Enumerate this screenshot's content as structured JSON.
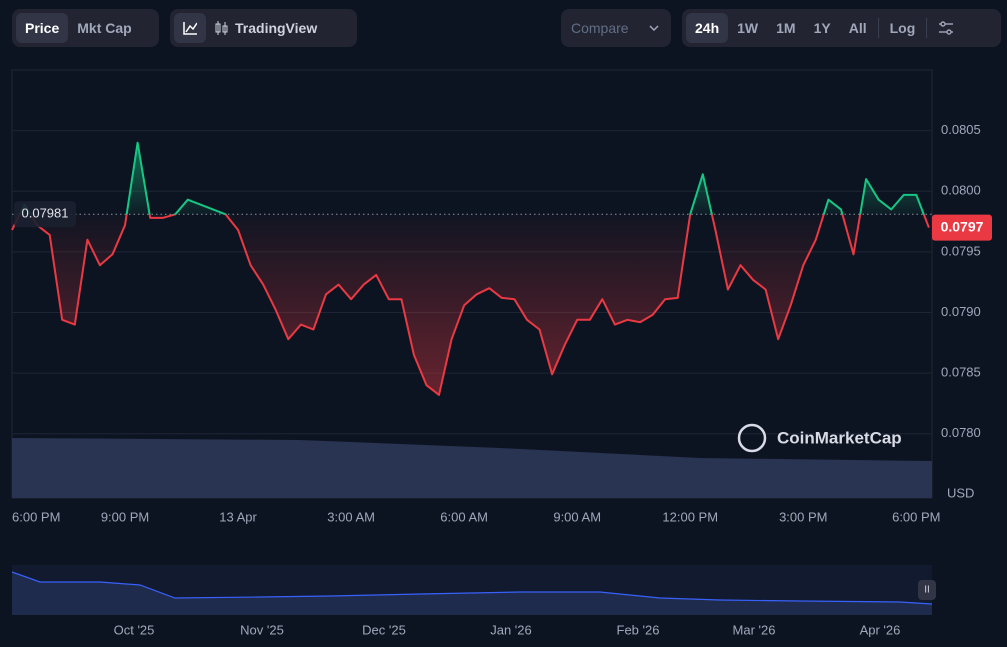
{
  "toolbar": {
    "view_tabs": [
      "Price",
      "Mkt Cap"
    ],
    "tradingview": "TradingView",
    "compare": "Compare",
    "ranges": [
      "24h",
      "1W",
      "1M",
      "1Y",
      "All"
    ],
    "log": "Log"
  },
  "chart_data": {
    "type": "line",
    "categories": [
      "6:00 PM",
      null,
      null,
      null,
      null,
      null,
      null,
      null,
      null,
      "9:00 PM",
      null,
      null,
      null,
      null,
      null,
      null,
      null,
      null,
      "13 Apr",
      null,
      null,
      null,
      null,
      null,
      null,
      null,
      null,
      "3:00 AM",
      null,
      null,
      null,
      null,
      null,
      null,
      null,
      null,
      "6:00 AM",
      null,
      null,
      null,
      null,
      null,
      null,
      null,
      null,
      "9:00 AM",
      null,
      null,
      null,
      null,
      null,
      null,
      null,
      null,
      "12:00 PM",
      null,
      null,
      null,
      null,
      null,
      null,
      null,
      null,
      "3:00 PM",
      null,
      null,
      null,
      null,
      null,
      null,
      null,
      null,
      "6:00 PM",
      null
    ],
    "values": [
      0.07968,
      0.07989,
      0.07972,
      0.07964,
      0.07894,
      0.0789,
      0.0796,
      0.07939,
      0.07948,
      0.07972,
      0.0804,
      0.07978,
      0.07978,
      0.07981,
      0.07993,
      0.07989,
      0.07985,
      0.07981,
      0.07968,
      0.07939,
      0.07923,
      0.07902,
      0.07878,
      0.0789,
      0.07886,
      0.07915,
      0.07923,
      0.07911,
      0.07923,
      0.07931,
      0.07911,
      0.07911,
      0.07865,
      0.0784,
      0.07832,
      0.07878,
      0.07906,
      0.07915,
      0.0792,
      0.07912,
      0.07911,
      0.07894,
      0.07886,
      0.07849,
      0.07873,
      0.07894,
      0.07894,
      0.07911,
      0.0789,
      0.07894,
      0.07892,
      0.07898,
      0.07911,
      0.07912,
      0.07981,
      0.08014,
      0.07968,
      0.07919,
      0.07939,
      0.07927,
      0.07919,
      0.07878,
      0.07906,
      0.07939,
      0.0796,
      0.07993,
      0.07985,
      0.07948,
      0.0801,
      0.07993,
      0.07985,
      0.07997,
      0.07997,
      0.0797
    ],
    "reference": 0.07981,
    "color_up": "#16c784",
    "color_down": "#ea3943",
    "ylim": [
      0.07747,
      0.081
    ],
    "yticks": [
      {
        "value": 0.078,
        "label": "0.0780"
      },
      0.0785,
      {
        "value": 0.079,
        "label": "0.0790"
      },
      0.0795,
      {
        "value": 0.08,
        "label": "0.0800"
      },
      0.0805
    ],
    "grid": true,
    "unit": "USD"
  },
  "watermark": "CoinMarketCap",
  "navigator": {
    "labels": [
      "Oct '25",
      "Nov '25",
      "Dec '25",
      "Jan '26",
      "Feb '26",
      "Mar '26",
      "Apr '26"
    ]
  }
}
